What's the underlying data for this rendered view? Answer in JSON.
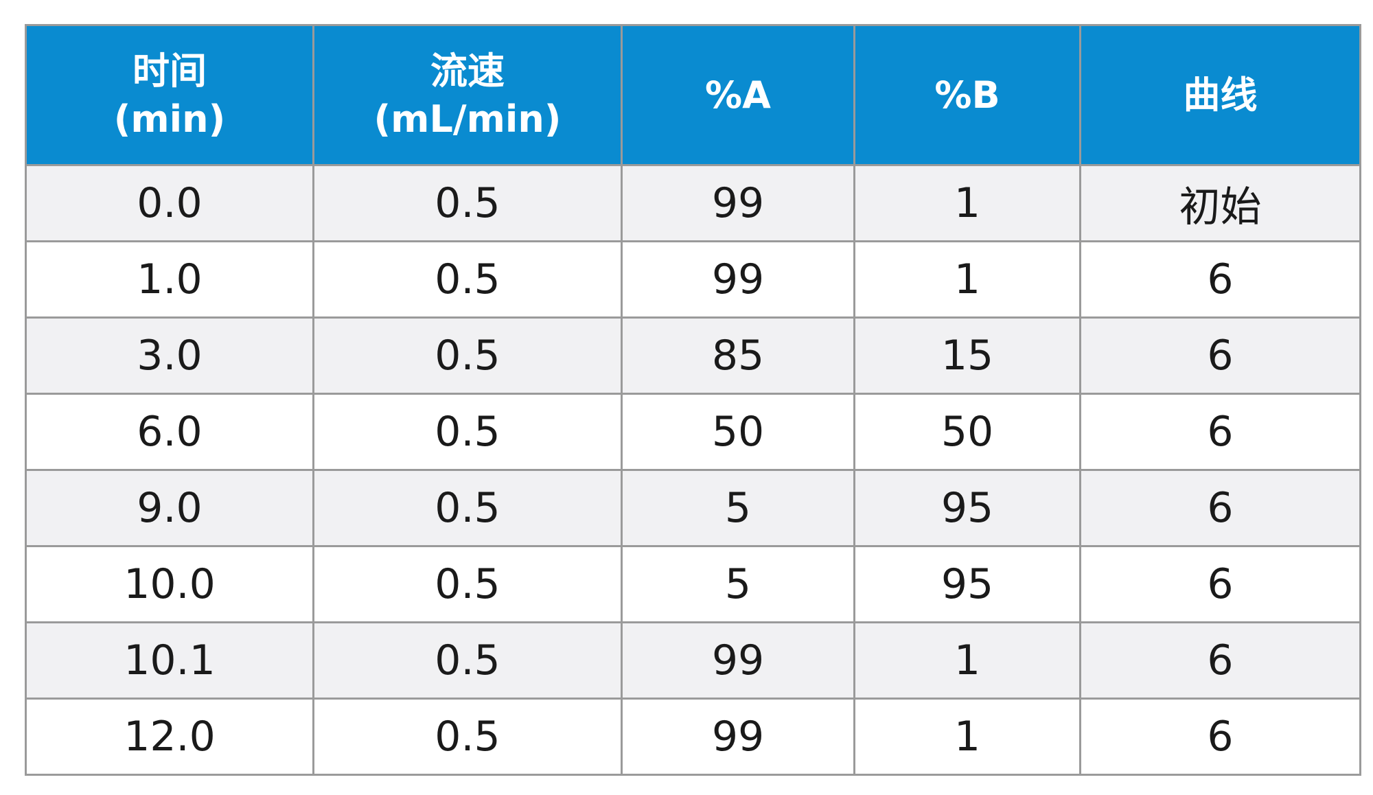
{
  "table": {
    "headers": [
      {
        "line1": "时间",
        "line2": "(min)"
      },
      {
        "line1": "流速",
        "line2": "(mL/min)"
      },
      {
        "line1": "%A",
        "line2": ""
      },
      {
        "line1": "%B",
        "line2": ""
      },
      {
        "line1": "曲线",
        "line2": ""
      }
    ],
    "rows": [
      [
        "0.0",
        "0.5",
        "99",
        "1",
        "初始"
      ],
      [
        "1.0",
        "0.5",
        "99",
        "1",
        "6"
      ],
      [
        "3.0",
        "0.5",
        "85",
        "15",
        "6"
      ],
      [
        "6.0",
        "0.5",
        "50",
        "50",
        "6"
      ],
      [
        "9.0",
        "0.5",
        "5",
        "95",
        "6"
      ],
      [
        "10.0",
        "0.5",
        "5",
        "95",
        "6"
      ],
      [
        "10.1",
        "0.5",
        "99",
        "1",
        "6"
      ],
      [
        "12.0",
        "0.5",
        "99",
        "1",
        "6"
      ]
    ],
    "colors": {
      "header_bg": "#0a8bd0",
      "header_text": "#ffffff",
      "border": "#9a9a9a",
      "row_shade": "#f1f1f3",
      "row_plain": "#ffffff"
    }
  }
}
